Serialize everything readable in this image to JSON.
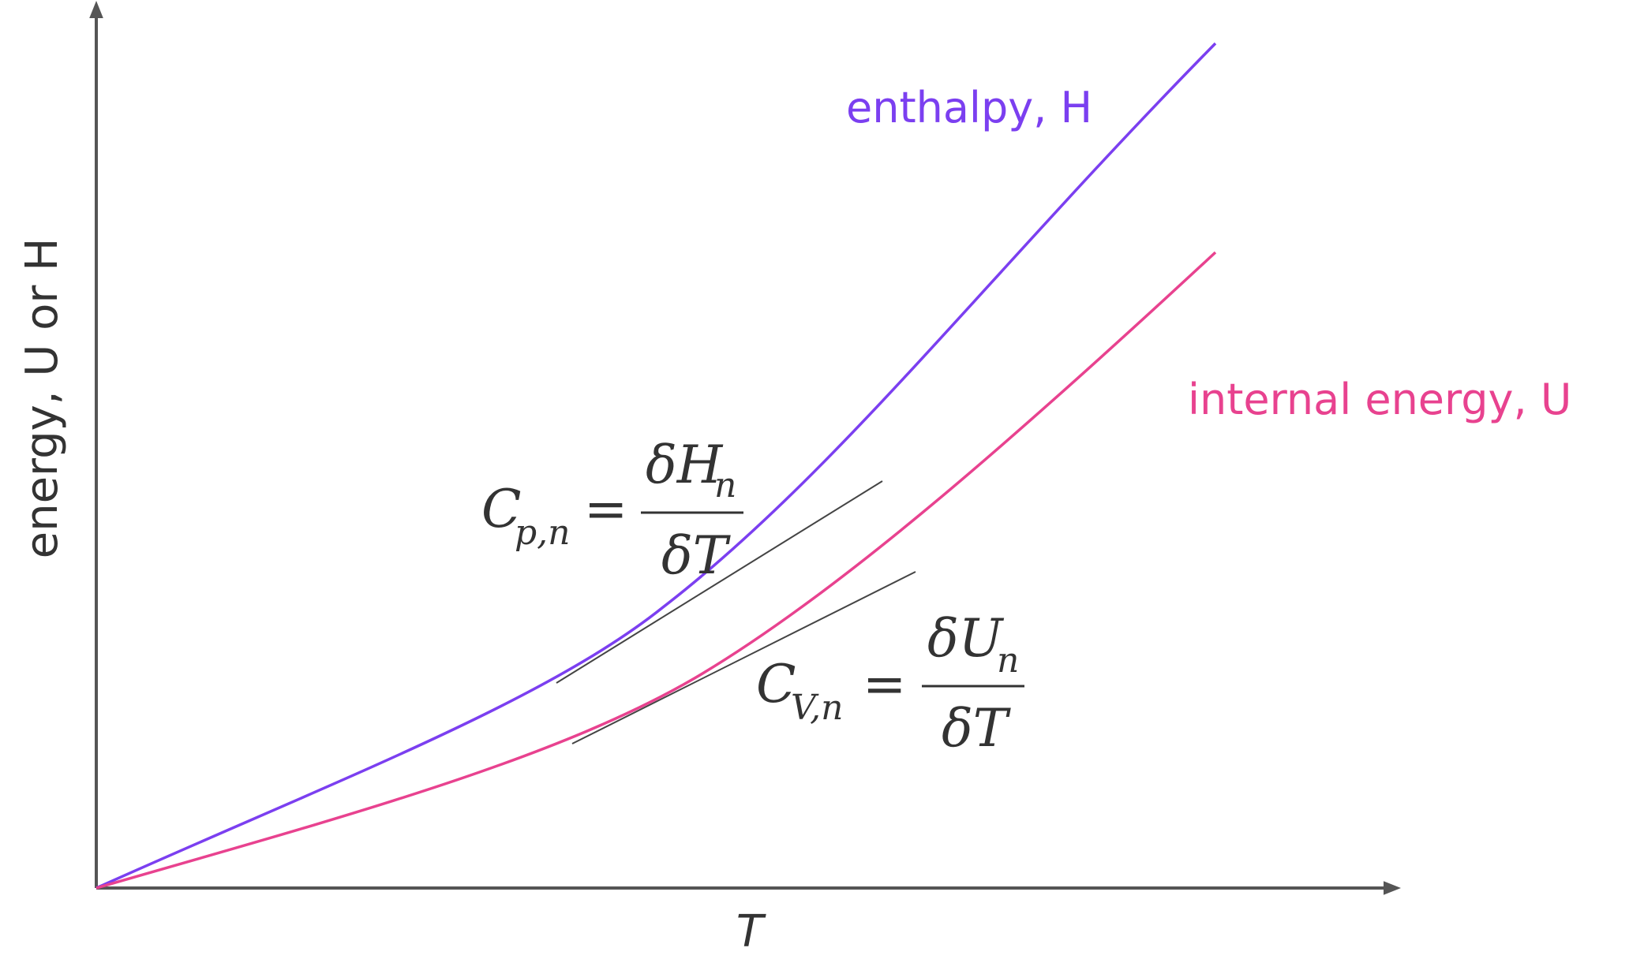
{
  "axes": {
    "x_label": "T",
    "y_label": "energy, U or H",
    "axis_color": "#555555"
  },
  "curves": [
    {
      "name": "enthalpy, H",
      "color": "#7b3ff0"
    },
    {
      "name": "internal energy, U",
      "color": "#e8428f"
    }
  ],
  "equations": {
    "cp": {
      "symbol": "C",
      "subscript": "p,n",
      "equals": "=",
      "numerator_symbol": "δH",
      "numerator_subscript": "n",
      "denominator": "δT"
    },
    "cv": {
      "symbol": "C",
      "subscript": "V,n",
      "equals": "=",
      "numerator_symbol": "δU",
      "numerator_subscript": "n",
      "denominator": "δT"
    }
  },
  "tangent_color": "#444444"
}
